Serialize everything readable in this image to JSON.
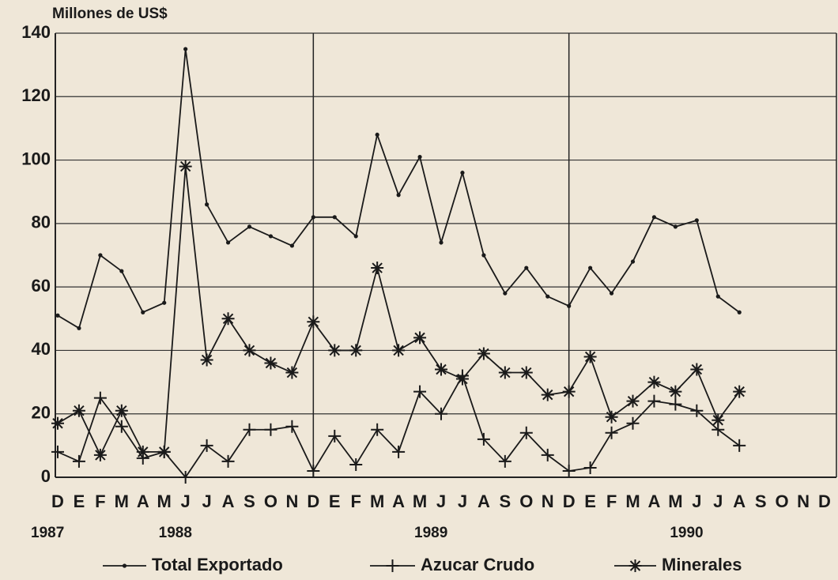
{
  "chart_data": {
    "type": "line",
    "y_axis_label": "Millones de US$",
    "categories": [
      "D",
      "E",
      "F",
      "M",
      "A",
      "M",
      "J",
      "J",
      "A",
      "S",
      "O",
      "N",
      "D",
      "E",
      "F",
      "M",
      "A",
      "M",
      "J",
      "J",
      "A",
      "S",
      "O",
      "N",
      "D",
      "E",
      "F",
      "M",
      "A",
      "M",
      "J",
      "J",
      "A",
      "S",
      "O",
      "N",
      "D"
    ],
    "year_labels": [
      "1987",
      "1988",
      "1989",
      "1990"
    ],
    "series": [
      {
        "name": "Total Exportado",
        "color": "#1a1a1a",
        "marker": "dot",
        "values": [
          51,
          47,
          70,
          65,
          52,
          55,
          135,
          86,
          74,
          79,
          76,
          73,
          82,
          82,
          76,
          108,
          89,
          101,
          74,
          96,
          70,
          58,
          66,
          57,
          54,
          66,
          58,
          68,
          82,
          79,
          81,
          57,
          52,
          null,
          null,
          null,
          null
        ]
      },
      {
        "name": "Azucar Crudo",
        "color": "#1a1a1a",
        "marker": "plus",
        "values": [
          8,
          5,
          25,
          16,
          6,
          8,
          0,
          10,
          5,
          15,
          15,
          16,
          2,
          13,
          4,
          15,
          8,
          27,
          20,
          32,
          12,
          5,
          14,
          7,
          2,
          3,
          14,
          17,
          24,
          23,
          21,
          15,
          10,
          null,
          null,
          null,
          null
        ]
      },
      {
        "name": "Minerales",
        "color": "#1a1a1a",
        "marker": "star",
        "values": [
          17,
          21,
          7,
          21,
          8,
          8,
          98,
          37,
          50,
          40,
          36,
          33,
          49,
          40,
          40,
          66,
          40,
          44,
          34,
          31,
          39,
          33,
          33,
          26,
          27,
          38,
          19,
          24,
          30,
          27,
          34,
          18,
          27,
          null,
          null,
          null,
          null
        ]
      }
    ],
    "ylim": [
      0,
      140
    ],
    "yticks": [
      0,
      20,
      40,
      60,
      80,
      100,
      120,
      140
    ],
    "grid": true,
    "legend": "bottom"
  }
}
